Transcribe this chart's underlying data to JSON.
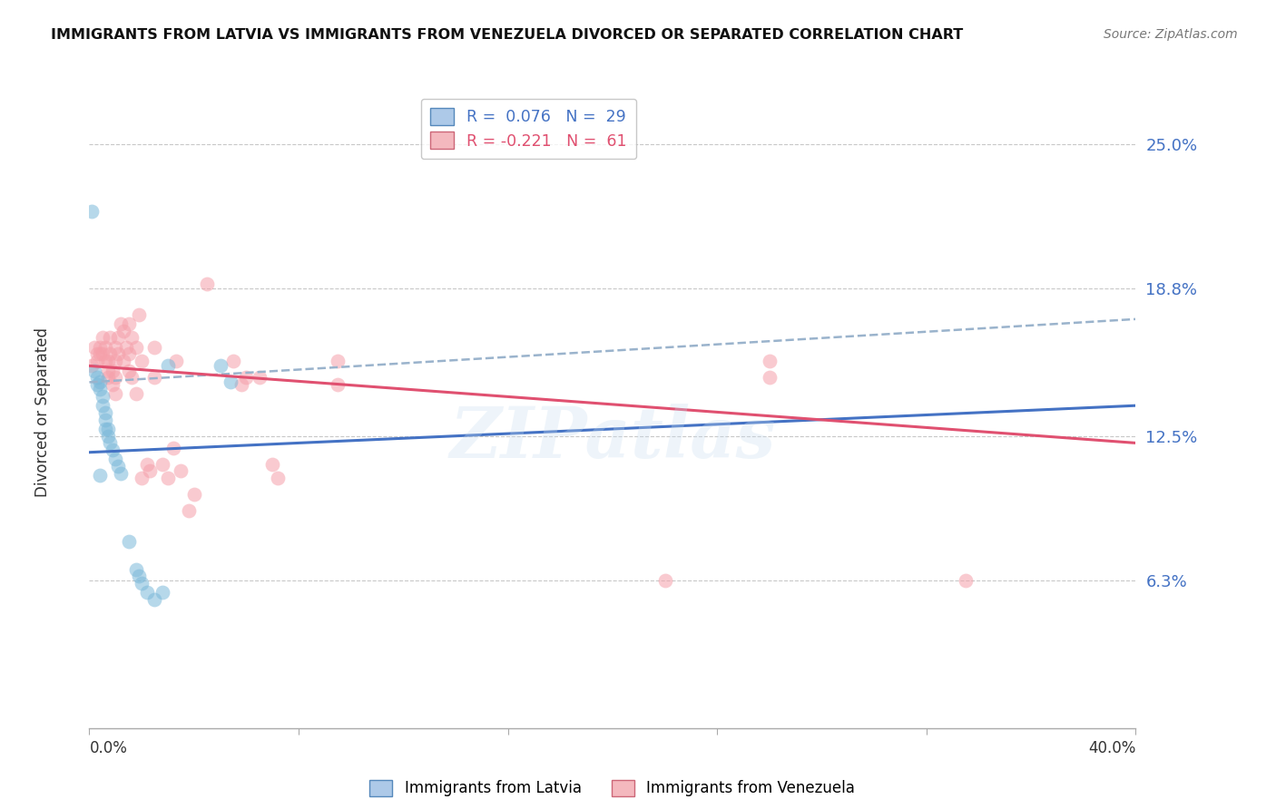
{
  "title": "IMMIGRANTS FROM LATVIA VS IMMIGRANTS FROM VENEZUELA DIVORCED OR SEPARATED CORRELATION CHART",
  "source": "Source: ZipAtlas.com",
  "ylabel": "Divorced or Separated",
  "xlim": [
    0.0,
    0.4
  ],
  "ylim": [
    0.0,
    0.27
  ],
  "ytick_values": [
    0.063,
    0.125,
    0.188,
    0.25
  ],
  "ytick_labels": [
    "6.3%",
    "12.5%",
    "18.8%",
    "25.0%"
  ],
  "xtick_left_label": "0.0%",
  "xtick_right_label": "40.0%",
  "latvia_color": "#7ab8d9",
  "venezuela_color": "#f5a0aa",
  "latvia_trend_color": "#4472c4",
  "venezuela_trend_color": "#e05070",
  "dashed_line_color": "#9ab3cc",
  "grid_color": "#c8c8c8",
  "background_color": "#ffffff",
  "title_fontsize": 11.5,
  "source_fontsize": 10,
  "watermark": "ZIPatlas",
  "legend_R_latvia": "0.076",
  "legend_N_latvia": "29",
  "legend_R_venezuela": "-0.221",
  "legend_N_venezuela": "61",
  "legend_bottom_1": "Immigrants from Latvia",
  "legend_bottom_2": "Immigrants from Venezuela",
  "latvia_trend_x": [
    0.0,
    0.4
  ],
  "latvia_trend_y": [
    0.118,
    0.138
  ],
  "venezuela_trend_x": [
    0.0,
    0.4
  ],
  "venezuela_trend_y": [
    0.155,
    0.122
  ],
  "dashed_trend_x": [
    0.0,
    0.4
  ],
  "dashed_trend_y": [
    0.148,
    0.175
  ],
  "latvia_points": [
    [
      0.001,
      0.221
    ],
    [
      0.002,
      0.153
    ],
    [
      0.003,
      0.15
    ],
    [
      0.003,
      0.147
    ],
    [
      0.004,
      0.148
    ],
    [
      0.004,
      0.145
    ],
    [
      0.004,
      0.108
    ],
    [
      0.005,
      0.142
    ],
    [
      0.005,
      0.138
    ],
    [
      0.006,
      0.135
    ],
    [
      0.006,
      0.132
    ],
    [
      0.006,
      0.128
    ],
    [
      0.007,
      0.128
    ],
    [
      0.007,
      0.125
    ],
    [
      0.008,
      0.122
    ],
    [
      0.009,
      0.119
    ],
    [
      0.01,
      0.115
    ],
    [
      0.011,
      0.112
    ],
    [
      0.012,
      0.109
    ],
    [
      0.015,
      0.08
    ],
    [
      0.018,
      0.068
    ],
    [
      0.019,
      0.065
    ],
    [
      0.02,
      0.062
    ],
    [
      0.022,
      0.058
    ],
    [
      0.025,
      0.055
    ],
    [
      0.028,
      0.058
    ],
    [
      0.03,
      0.155
    ],
    [
      0.05,
      0.155
    ],
    [
      0.054,
      0.148
    ]
  ],
  "venezuela_points": [
    [
      0.001,
      0.155
    ],
    [
      0.002,
      0.163
    ],
    [
      0.003,
      0.16
    ],
    [
      0.003,
      0.157
    ],
    [
      0.004,
      0.163
    ],
    [
      0.004,
      0.16
    ],
    [
      0.005,
      0.167
    ],
    [
      0.005,
      0.16
    ],
    [
      0.006,
      0.163
    ],
    [
      0.006,
      0.157
    ],
    [
      0.007,
      0.15
    ],
    [
      0.007,
      0.157
    ],
    [
      0.007,
      0.153
    ],
    [
      0.008,
      0.167
    ],
    [
      0.008,
      0.16
    ],
    [
      0.009,
      0.153
    ],
    [
      0.009,
      0.147
    ],
    [
      0.01,
      0.163
    ],
    [
      0.01,
      0.157
    ],
    [
      0.01,
      0.15
    ],
    [
      0.01,
      0.143
    ],
    [
      0.011,
      0.167
    ],
    [
      0.011,
      0.16
    ],
    [
      0.012,
      0.173
    ],
    [
      0.013,
      0.17
    ],
    [
      0.013,
      0.157
    ],
    [
      0.014,
      0.163
    ],
    [
      0.015,
      0.173
    ],
    [
      0.015,
      0.16
    ],
    [
      0.015,
      0.153
    ],
    [
      0.016,
      0.167
    ],
    [
      0.016,
      0.15
    ],
    [
      0.018,
      0.163
    ],
    [
      0.018,
      0.143
    ],
    [
      0.019,
      0.177
    ],
    [
      0.02,
      0.157
    ],
    [
      0.02,
      0.107
    ],
    [
      0.022,
      0.113
    ],
    [
      0.023,
      0.11
    ],
    [
      0.025,
      0.163
    ],
    [
      0.025,
      0.15
    ],
    [
      0.028,
      0.113
    ],
    [
      0.03,
      0.107
    ],
    [
      0.032,
      0.12
    ],
    [
      0.033,
      0.157
    ],
    [
      0.035,
      0.11
    ],
    [
      0.038,
      0.093
    ],
    [
      0.04,
      0.1
    ],
    [
      0.045,
      0.19
    ],
    [
      0.055,
      0.157
    ],
    [
      0.058,
      0.147
    ],
    [
      0.06,
      0.15
    ],
    [
      0.065,
      0.15
    ],
    [
      0.07,
      0.113
    ],
    [
      0.072,
      0.107
    ],
    [
      0.095,
      0.157
    ],
    [
      0.095,
      0.147
    ],
    [
      0.22,
      0.063
    ],
    [
      0.26,
      0.157
    ],
    [
      0.26,
      0.15
    ],
    [
      0.335,
      0.063
    ]
  ]
}
